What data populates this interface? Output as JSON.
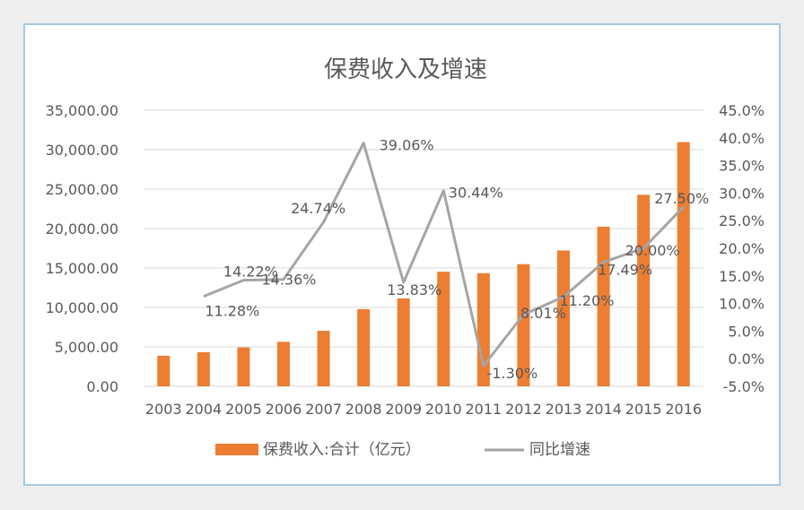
{
  "chart_data": {
    "type": "bar",
    "title": "保费收入及增速",
    "categories": [
      "2003",
      "2004",
      "2005",
      "2006",
      "2007",
      "2008",
      "2009",
      "2010",
      "2011",
      "2012",
      "2013",
      "2014",
      "2015",
      "2016"
    ],
    "series": [
      {
        "name": "保费收入:合计（亿元）",
        "type": "bar",
        "axis": "left",
        "color": "#ed7d31",
        "values": [
          3880,
          4318,
          4928,
          5642,
          7036,
          9784,
          11137,
          14528,
          14339,
          15488,
          17222,
          20235,
          24283,
          30959
        ]
      },
      {
        "name": "同比增速",
        "type": "line",
        "axis": "right",
        "color": "#a5a5a5",
        "values": [
          null,
          11.28,
          14.22,
          14.36,
          24.74,
          39.06,
          13.83,
          30.44,
          -1.3,
          8.01,
          11.2,
          17.49,
          20.0,
          27.5
        ],
        "labels": [
          "",
          "11.28%",
          "14.22%",
          "14.36%",
          "24.74%",
          "39.06%",
          "13.83%",
          "30.44%",
          "-1.30%",
          "8.01%",
          "11.20%",
          "17.49%",
          "20.00%",
          "27.50%"
        ]
      }
    ],
    "y_left": {
      "min": 0,
      "max": 35000,
      "ticks": [
        "0.00",
        "5,000.00",
        "10,000.00",
        "15,000.00",
        "20,000.00",
        "25,000.00",
        "30,000.00",
        "35,000.00"
      ]
    },
    "y_right": {
      "min": -5,
      "max": 45,
      "ticks": [
        "-5.0%",
        "0.0%",
        "5.0%",
        "10.0%",
        "15.0%",
        "20.0%",
        "25.0%",
        "30.0%",
        "35.0%",
        "40.0%",
        "45.0%"
      ]
    },
    "grid": true,
    "legend_position": "bottom"
  }
}
